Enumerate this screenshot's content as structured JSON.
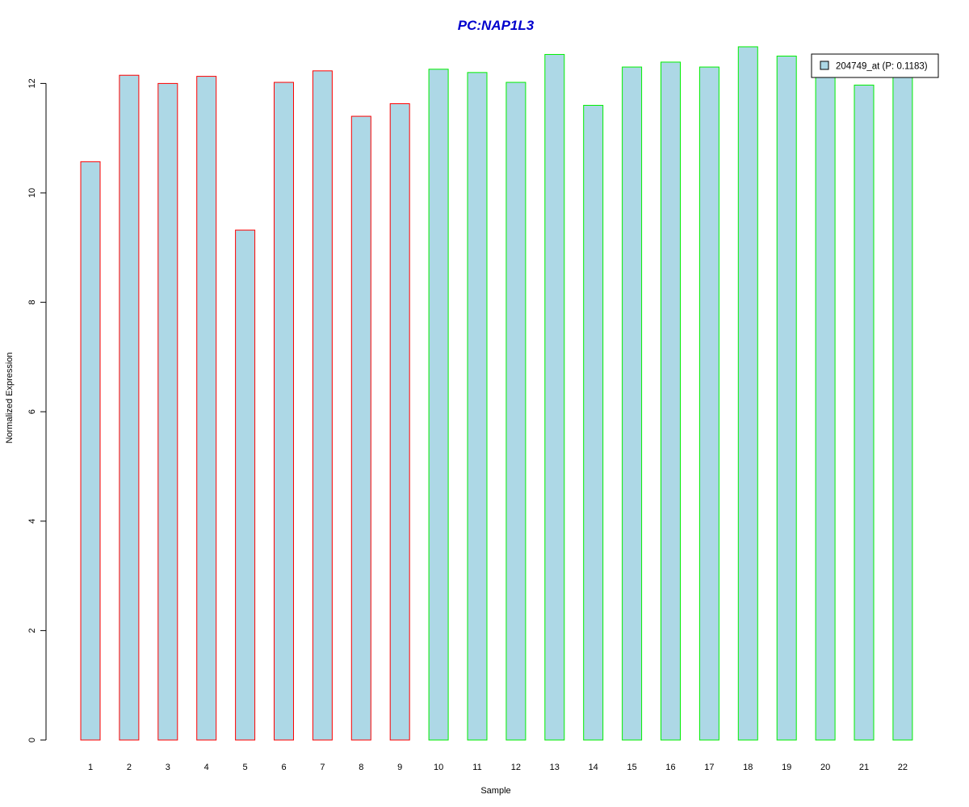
{
  "chart_data": {
    "type": "bar",
    "title": "PC:NAP1L3",
    "xlabel": "Sample",
    "ylabel": "Normalized Expression",
    "categories": [
      "1",
      "2",
      "3",
      "4",
      "5",
      "6",
      "7",
      "8",
      "9",
      "10",
      "11",
      "12",
      "13",
      "14",
      "15",
      "16",
      "17",
      "18",
      "19",
      "20",
      "21",
      "22"
    ],
    "series": [
      {
        "name": "204749_at (P: 0.1183)",
        "values": [
          10.57,
          12.15,
          12.0,
          12.13,
          9.32,
          12.02,
          12.23,
          11.4,
          11.63,
          12.26,
          12.2,
          12.02,
          12.53,
          11.6,
          12.3,
          12.39,
          12.3,
          12.67,
          12.5,
          12.3,
          11.97,
          12.3
        ]
      }
    ],
    "groups": [
      {
        "samples": [
          "1",
          "2",
          "3",
          "4",
          "5",
          "6",
          "7",
          "8",
          "9"
        ],
        "border_color": "#ff0000"
      },
      {
        "samples": [
          "10",
          "11",
          "12",
          "13",
          "14",
          "15",
          "16",
          "17",
          "18",
          "19",
          "20",
          "21",
          "22"
        ],
        "border_color": "#00ee00"
      }
    ],
    "yticks": [
      0,
      2,
      4,
      6,
      8,
      10,
      12
    ],
    "ylim": [
      0,
      12.67
    ],
    "bar_fill": "#add8e6",
    "title_color": "#0000cd",
    "legend_position": "top-right",
    "grid": false
  }
}
